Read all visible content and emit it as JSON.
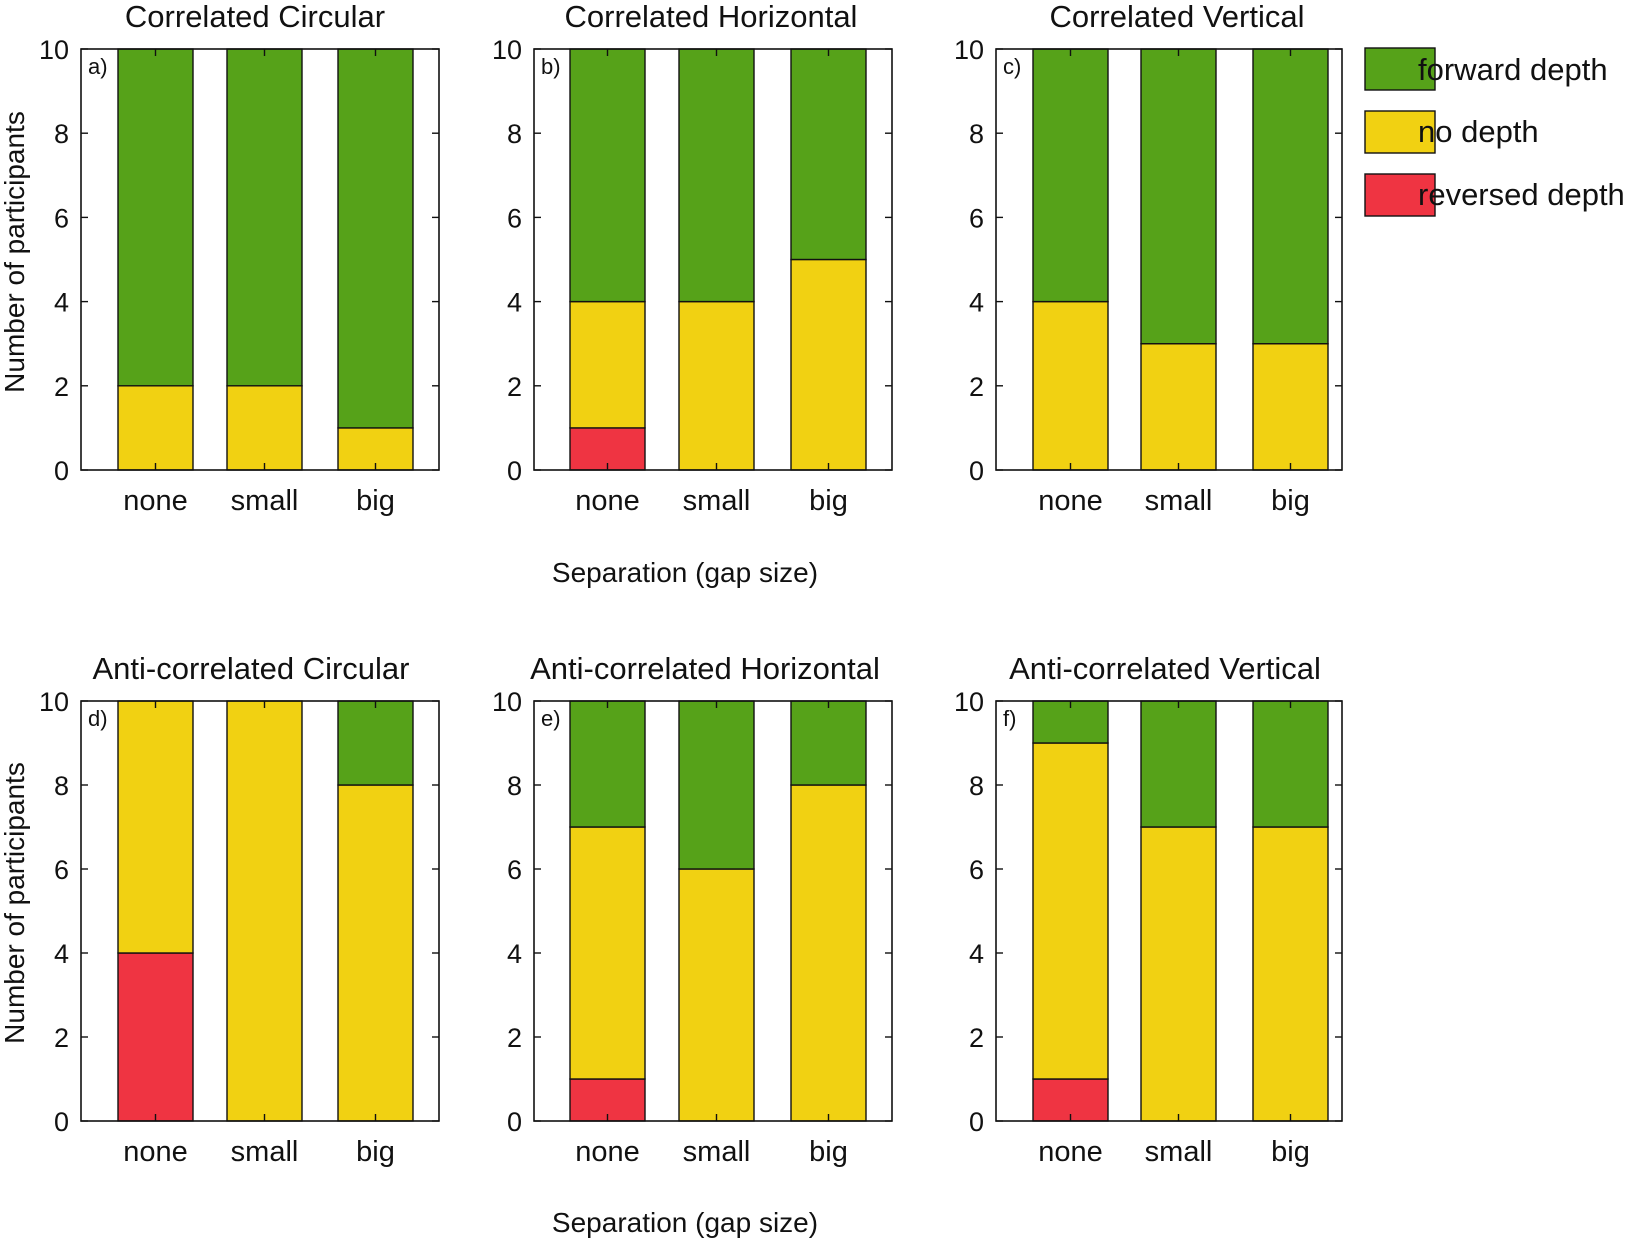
{
  "legend": {
    "items": [
      {
        "key": "forward",
        "label": "forward depth",
        "color": "#56a219"
      },
      {
        "key": "none",
        "label": "no depth",
        "color": "#f1d112"
      },
      {
        "key": "reversed",
        "label": "reversed depth",
        "color": "#ef3442"
      }
    ]
  },
  "axes": {
    "ylabel": "Number of participants",
    "xlabel": "Separation (gap size)"
  },
  "chart_data": [
    {
      "type": "bar",
      "stacked": true,
      "panel_label": "a)",
      "title": "Correlated Circular",
      "categories": [
        "none",
        "small",
        "big"
      ],
      "ylim": [
        0,
        10
      ],
      "yticks": [
        0,
        2,
        4,
        6,
        8,
        10
      ],
      "series": [
        {
          "name": "reversed depth",
          "values": [
            0,
            0,
            0
          ]
        },
        {
          "name": "no depth",
          "values": [
            2,
            2,
            1
          ]
        },
        {
          "name": "forward depth",
          "values": [
            8,
            8,
            9
          ]
        }
      ]
    },
    {
      "type": "bar",
      "stacked": true,
      "panel_label": "b)",
      "title": "Correlated Horizontal",
      "categories": [
        "none",
        "small",
        "big"
      ],
      "ylim": [
        0,
        10
      ],
      "yticks": [
        0,
        2,
        4,
        6,
        8,
        10
      ],
      "series": [
        {
          "name": "reversed depth",
          "values": [
            1,
            0,
            0
          ]
        },
        {
          "name": "no depth",
          "values": [
            3,
            4,
            5
          ]
        },
        {
          "name": "forward depth",
          "values": [
            6,
            6,
            5
          ]
        }
      ]
    },
    {
      "type": "bar",
      "stacked": true,
      "panel_label": "c)",
      "title": "Correlated Vertical",
      "categories": [
        "none",
        "small",
        "big"
      ],
      "ylim": [
        0,
        10
      ],
      "yticks": [
        0,
        2,
        4,
        6,
        8,
        10
      ],
      "series": [
        {
          "name": "reversed depth",
          "values": [
            0,
            0,
            0
          ]
        },
        {
          "name": "no depth",
          "values": [
            4,
            3,
            3
          ]
        },
        {
          "name": "forward depth",
          "values": [
            6,
            7,
            7
          ]
        }
      ]
    },
    {
      "type": "bar",
      "stacked": true,
      "panel_label": "d)",
      "title": "Anti-correlated Circular",
      "categories": [
        "none",
        "small",
        "big"
      ],
      "ylim": [
        0,
        10
      ],
      "yticks": [
        0,
        2,
        4,
        6,
        8,
        10
      ],
      "series": [
        {
          "name": "reversed depth",
          "values": [
            4,
            0,
            0
          ]
        },
        {
          "name": "no depth",
          "values": [
            6,
            10,
            8
          ]
        },
        {
          "name": "forward depth",
          "values": [
            0,
            0,
            2
          ]
        }
      ]
    },
    {
      "type": "bar",
      "stacked": true,
      "panel_label": "e)",
      "title": "Anti-correlated Horizontal",
      "categories": [
        "none",
        "small",
        "big"
      ],
      "ylim": [
        0,
        10
      ],
      "yticks": [
        0,
        2,
        4,
        6,
        8,
        10
      ],
      "series": [
        {
          "name": "reversed depth",
          "values": [
            1,
            0,
            0
          ]
        },
        {
          "name": "no depth",
          "values": [
            6,
            6,
            8
          ]
        },
        {
          "name": "forward depth",
          "values": [
            3,
            4,
            2
          ]
        }
      ]
    },
    {
      "type": "bar",
      "stacked": true,
      "panel_label": "f)",
      "title": "Anti-correlated Vertical",
      "categories": [
        "none",
        "small",
        "big"
      ],
      "ylim": [
        0,
        10
      ],
      "yticks": [
        0,
        2,
        4,
        6,
        8,
        10
      ],
      "series": [
        {
          "name": "reversed depth",
          "values": [
            1,
            0,
            0
          ]
        },
        {
          "name": "no depth",
          "values": [
            8,
            7,
            7
          ]
        },
        {
          "name": "forward depth",
          "values": [
            1,
            3,
            3
          ]
        }
      ]
    }
  ]
}
